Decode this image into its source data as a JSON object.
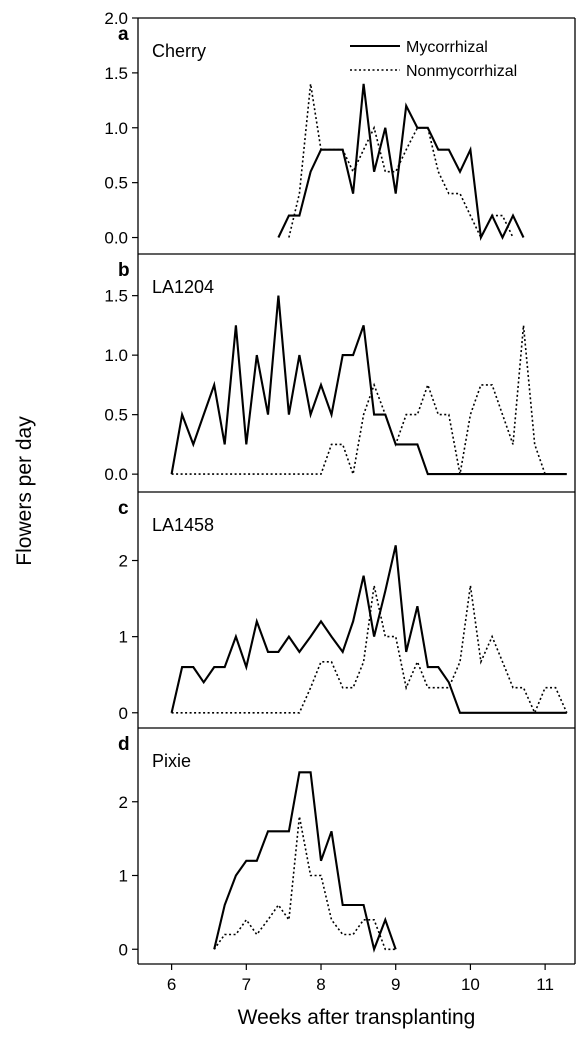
{
  "chart_data": {
    "type": "line",
    "xlabel": "Weeks after transplanting",
    "ylabel": "Flowers per day",
    "xlim": [
      5.55,
      11.4
    ],
    "x_ticks": [
      "6",
      "7",
      "8",
      "9",
      "10",
      "11"
    ],
    "legend": {
      "placement": "top-right",
      "entries": [
        {
          "name": "Mycorrhizal",
          "style": "solid"
        },
        {
          "name": "Nonmycorrhizal",
          "style": "dotted"
        }
      ]
    },
    "panels": [
      {
        "letter": "a",
        "name": "Cherry",
        "ylim": [
          -0.15,
          2.0
        ],
        "y_ticks": [
          "0.0",
          "0.5",
          "1.0",
          "1.5",
          "2.0"
        ],
        "series": [
          {
            "name": "Mycorrhizal",
            "x": [
              7.43,
              7.57,
              7.71,
              7.86,
              8.0,
              8.14,
              8.29,
              8.43,
              8.57,
              8.71,
              8.86,
              9.0,
              9.14,
              9.29,
              9.43,
              9.57,
              9.71,
              9.86,
              10.0,
              10.14,
              10.29,
              10.43,
              10.57,
              10.71
            ],
            "y": [
              0.0,
              0.2,
              0.2,
              0.6,
              0.8,
              0.8,
              0.8,
              0.4,
              1.4,
              0.6,
              1.0,
              0.4,
              1.2,
              1.0,
              1.0,
              0.8,
              0.8,
              0.6,
              0.8,
              0.0,
              0.2,
              0.0,
              0.2,
              0.0
            ]
          },
          {
            "name": "Nonmycorrhizal",
            "x": [
              7.57,
              7.71,
              7.86,
              8.0,
              8.14,
              8.29,
              8.43,
              8.57,
              8.71,
              8.86,
              9.0,
              9.14,
              9.29,
              9.43,
              9.57,
              9.71,
              9.86,
              10.0,
              10.14,
              10.29,
              10.43,
              10.57
            ],
            "y": [
              0.0,
              0.4,
              1.4,
              0.8,
              0.8,
              0.8,
              0.6,
              0.8,
              1.0,
              0.6,
              0.6,
              0.8,
              1.0,
              1.0,
              0.6,
              0.4,
              0.4,
              0.2,
              0.0,
              0.2,
              0.2,
              0.0
            ]
          }
        ]
      },
      {
        "letter": "b",
        "name": "LA1204",
        "ylim": [
          -0.15,
          1.85
        ],
        "y_ticks": [
          "0.0",
          "0.5",
          "1.0",
          "1.5"
        ],
        "series": [
          {
            "name": "Mycorrhizal",
            "x": [
              6.0,
              6.14,
              6.29,
              6.43,
              6.57,
              6.71,
              6.86,
              7.0,
              7.14,
              7.29,
              7.43,
              7.57,
              7.71,
              7.86,
              8.0,
              8.14,
              8.29,
              8.43,
              8.57,
              8.71,
              8.86,
              9.0,
              9.14,
              9.29,
              9.43,
              11.29
            ],
            "y": [
              0.0,
              0.5,
              0.25,
              0.5,
              0.75,
              0.25,
              1.25,
              0.25,
              1.0,
              0.5,
              1.5,
              0.5,
              1.0,
              0.5,
              0.75,
              0.5,
              1.0,
              1.0,
              1.25,
              0.5,
              0.5,
              0.25,
              0.25,
              0.25,
              0.0,
              0.0
            ]
          },
          {
            "name": "Nonmycorrhizal",
            "x": [
              6.0,
              8.0,
              8.14,
              8.29,
              8.43,
              8.57,
              8.71,
              8.86,
              9.0,
              9.14,
              9.29,
              9.43,
              9.57,
              9.71,
              9.86,
              10.0,
              10.14,
              10.29,
              10.43,
              10.57,
              10.71,
              10.86,
              11.0
            ],
            "y": [
              0.0,
              0.0,
              0.25,
              0.25,
              0.0,
              0.5,
              0.75,
              0.5,
              0.25,
              0.5,
              0.5,
              0.75,
              0.5,
              0.5,
              0.0,
              0.5,
              0.75,
              0.75,
              0.5,
              0.25,
              1.25,
              0.25,
              0.0
            ]
          }
        ]
      },
      {
        "letter": "c",
        "name": "LA1458",
        "ylim": [
          -0.2,
          2.9
        ],
        "y_ticks": [
          "0",
          "1",
          "2"
        ],
        "series": [
          {
            "name": "Mycorrhizal",
            "x": [
              6.0,
              6.14,
              6.29,
              6.43,
              6.57,
              6.71,
              6.86,
              7.0,
              7.14,
              7.29,
              7.43,
              7.57,
              7.71,
              7.86,
              8.0,
              8.14,
              8.29,
              8.43,
              8.57,
              8.71,
              8.86,
              9.0,
              9.14,
              9.29,
              9.43,
              9.57,
              9.71,
              9.86,
              10.0,
              11.29
            ],
            "y": [
              0.0,
              0.6,
              0.6,
              0.4,
              0.6,
              0.6,
              1.0,
              0.6,
              1.2,
              0.8,
              0.8,
              1.0,
              0.8,
              1.0,
              1.2,
              1.0,
              0.8,
              1.2,
              1.8,
              1.0,
              1.6,
              2.2,
              0.8,
              1.4,
              0.6,
              0.6,
              0.4,
              0.0,
              0.0,
              0.0
            ]
          },
          {
            "name": "Nonmycorrhizal",
            "x": [
              6.0,
              7.71,
              7.86,
              8.0,
              8.14,
              8.29,
              8.43,
              8.57,
              8.71,
              8.86,
              9.0,
              9.14,
              9.29,
              9.43,
              9.57,
              9.71,
              9.86,
              10.0,
              10.14,
              10.29,
              10.43,
              10.57,
              10.71,
              10.86,
              11.0,
              11.14,
              11.29
            ],
            "y": [
              0.0,
              0.0,
              0.33,
              0.67,
              0.67,
              0.33,
              0.33,
              0.67,
              1.67,
              1.0,
              1.0,
              0.33,
              0.67,
              0.33,
              0.33,
              0.33,
              0.67,
              1.67,
              0.67,
              1.0,
              0.67,
              0.33,
              0.33,
              0.0,
              0.33,
              0.33,
              0.0
            ]
          }
        ]
      },
      {
        "letter": "d",
        "name": "Pixie",
        "ylim": [
          -0.2,
          3.0
        ],
        "y_ticks": [
          "0",
          "1",
          "2"
        ],
        "series": [
          {
            "name": "Mycorrhizal",
            "x": [
              6.57,
              6.71,
              6.86,
              7.0,
              7.14,
              7.29,
              7.43,
              7.57,
              7.71,
              7.86,
              8.0,
              8.14,
              8.29,
              8.43,
              8.57,
              8.71,
              8.86,
              9.0
            ],
            "y": [
              0.0,
              0.6,
              1.0,
              1.2,
              1.2,
              1.6,
              1.6,
              1.6,
              2.4,
              2.4,
              1.2,
              1.6,
              0.6,
              0.6,
              0.6,
              0.0,
              0.4,
              0.0
            ]
          },
          {
            "name": "Nonmycorrhizal",
            "x": [
              6.57,
              6.71,
              6.86,
              7.0,
              7.14,
              7.29,
              7.43,
              7.57,
              7.71,
              7.86,
              8.0,
              8.14,
              8.29,
              8.43,
              8.57,
              8.71,
              8.86,
              9.0
            ],
            "y": [
              0.0,
              0.2,
              0.2,
              0.4,
              0.2,
              0.4,
              0.6,
              0.4,
              1.8,
              1.0,
              1.0,
              0.4,
              0.2,
              0.2,
              0.4,
              0.4,
              0.0,
              0.0
            ]
          }
        ]
      }
    ]
  }
}
